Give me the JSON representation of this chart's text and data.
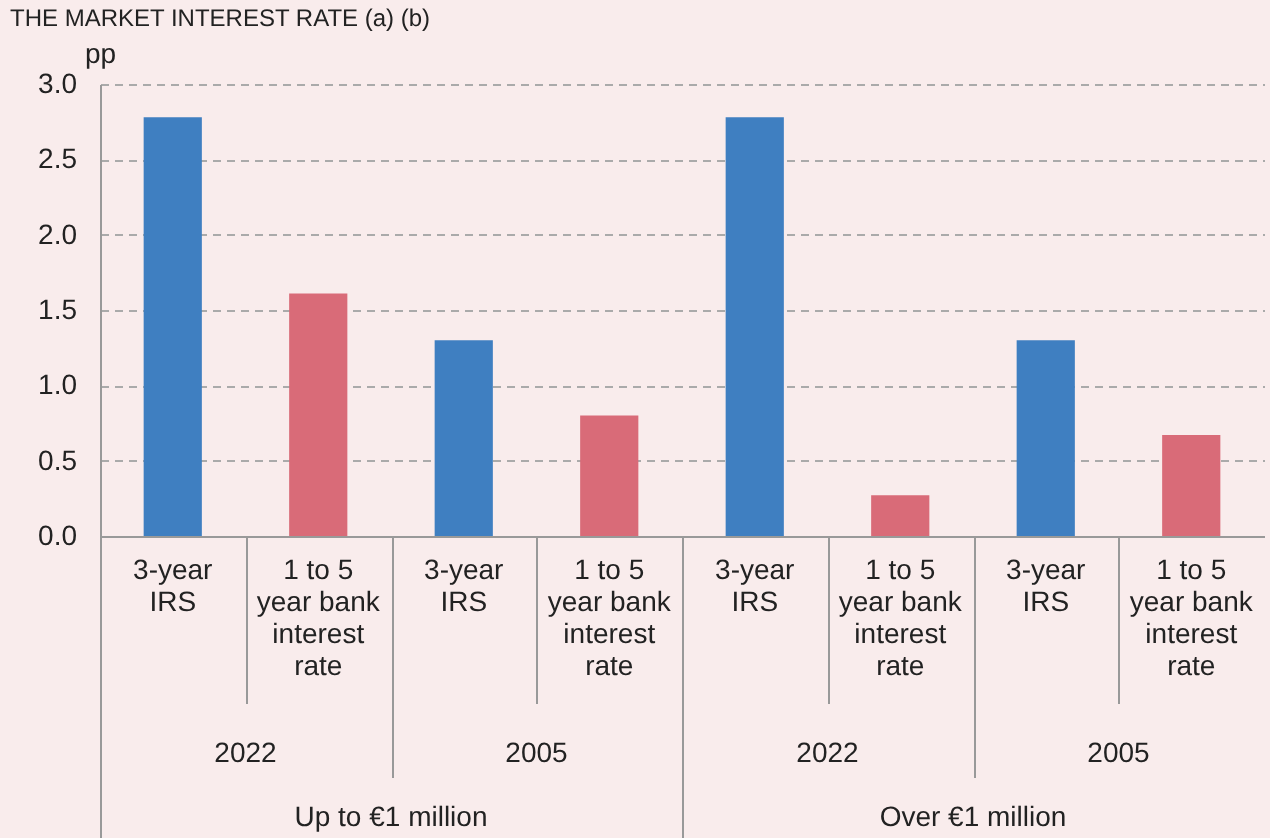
{
  "chart_data": {
    "type": "bar",
    "title": "THE MARKET INTEREST RATE (a) (b)",
    "ylabel": "pp",
    "categories": [
      "3-year IRS",
      "1 to 5 year bank interest rate",
      "3-year IRS",
      "1 to 5 year bank interest rate",
      "3-year IRS",
      "1 to 5 year bank interest rate",
      "3-year IRS",
      "1 to 5 year bank interest rate"
    ],
    "values": [
      2.78,
      1.61,
      1.3,
      0.8,
      2.78,
      0.27,
      1.3,
      0.67
    ],
    "colors": [
      "#3f7fc1",
      "#d96b78",
      "#3f7fc1",
      "#d96b78",
      "#3f7fc1",
      "#d96b78",
      "#3f7fc1",
      "#d96b78"
    ],
    "ylim": [
      0,
      3
    ],
    "yticks": [
      {
        "value": 0,
        "label": "0.0"
      },
      0.5,
      {
        "value": 1,
        "label": "1.0"
      },
      1.5,
      {
        "value": 2,
        "label": "2.0"
      },
      2.5,
      {
        "value": 3,
        "label": "3.0"
      }
    ],
    "grid": "y",
    "annotations": [
      "2022",
      "2005",
      "2022",
      "2005",
      "Up to €1 million",
      "Over €1 million"
    ]
  }
}
